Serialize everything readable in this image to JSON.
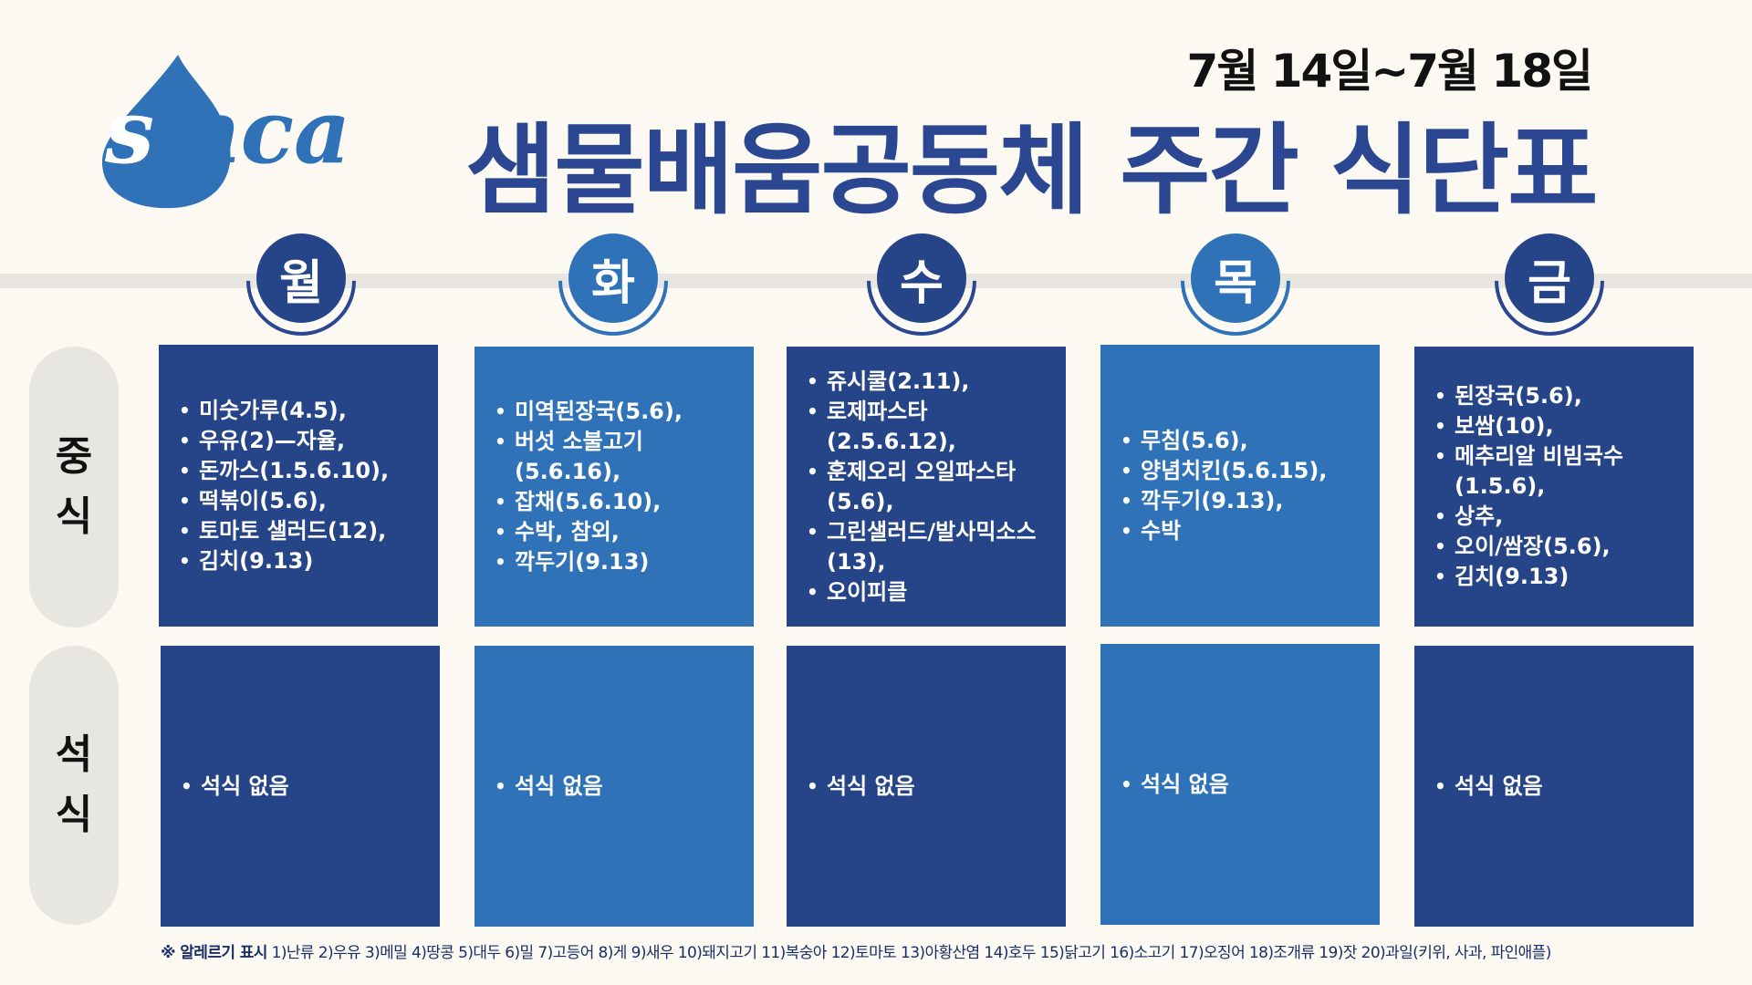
{
  "logo": {
    "text": "smca",
    "color": "#2f72b8"
  },
  "header": {
    "date_range": "7월 14일~7월 18일",
    "title": "샘물배움공동체 주간 식단표"
  },
  "days": [
    "월",
    "화",
    "수",
    "목",
    "금"
  ],
  "rows": {
    "lunch": [
      "중",
      "식"
    ],
    "dinner": [
      "석",
      "식"
    ]
  },
  "lunch": [
    [
      "미숫가루(4.5),",
      "우유(2)—자율,",
      "돈까스(1.5.6.10),",
      "떡볶이(5.6),",
      "토마토 샐러드(12),",
      "김치(9.13)"
    ],
    [
      "미역된장국(5.6),",
      "버섯 소불고기 (5.6.16),",
      "잡채(5.6.10),",
      "수박, 참외,",
      "깍두기(9.13)"
    ],
    [
      "쥬시쿨(2.11),",
      "로제파스타(2.5.6.12),",
      "훈제오리 오일파스타 (5.6),",
      "그린샐러드/발사믹소스(13),",
      "오이피클"
    ],
    [
      "무침(5.6),",
      "양념치킨(5.6.15),",
      "깍두기(9.13),",
      "수박"
    ],
    [
      "된장국(5.6),",
      "보쌈(10),",
      "메추리알 비빔국수 (1.5.6),",
      "상추,",
      "오이/쌈장(5.6),",
      "김치(9.13)"
    ]
  ],
  "dinner": [
    "석식 없음",
    "석식 없음",
    "석식 없음",
    "석식 없음",
    "석식 없음"
  ],
  "colors": {
    "dark": "#264488",
    "light": "#2f72b8",
    "title": "#2b4791"
  },
  "footer": {
    "lead": "※ 알레르기 표시",
    "text": "1)난류 2)우유 3)메밀 4)땅콩 5)대두 6)밀 7)고등어 8)게 9)새우 10)돼지고기 11)복숭아 12)토마토 13)아황산염 14)호두 15)닭고기 16)소고기 17)오징어 18)조개류 19)잣 20)과일(키위, 사과, 파인애플)"
  }
}
